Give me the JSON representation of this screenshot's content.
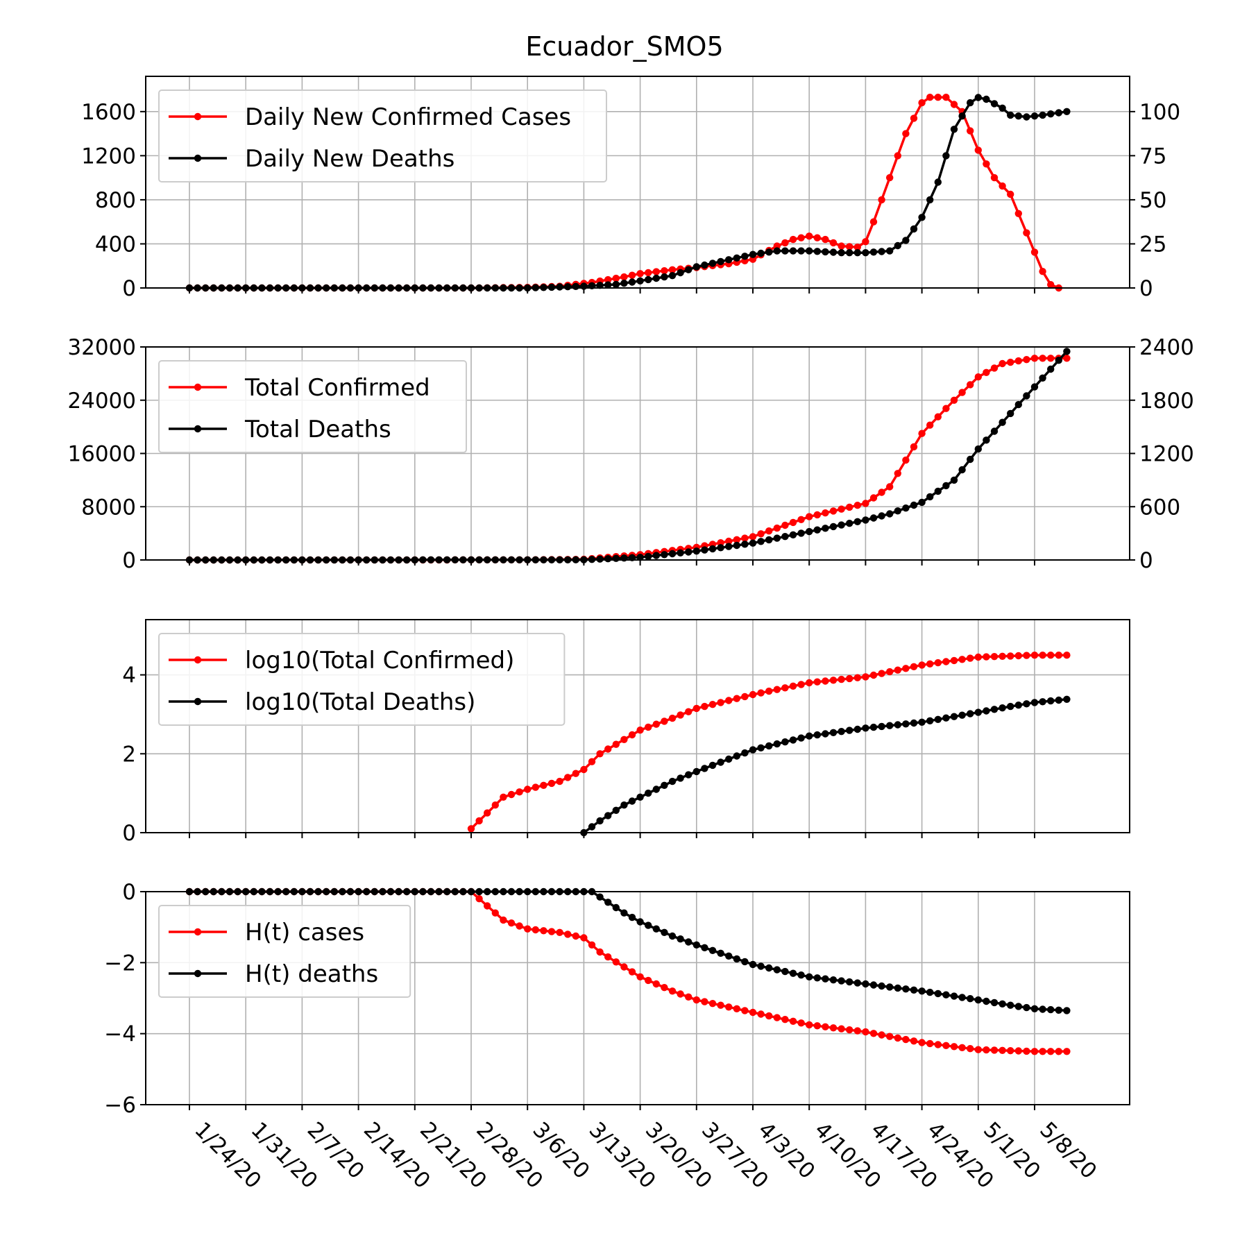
{
  "colors": {
    "cases": "#ff0000",
    "deaths": "#000000",
    "grid": "#b0b0b0"
  },
  "chart_data": [
    {
      "type": "line",
      "title": "Ecuador_SMO5",
      "x": [
        "1/24/20",
        "1/31/20",
        "2/7/20",
        "2/14/20",
        "2/21/20",
        "2/28/20",
        "3/6/20",
        "3/13/20",
        "3/20/20",
        "3/27/20",
        "4/3/20",
        "4/10/20",
        "4/17/20",
        "4/24/20",
        "5/1/20",
        "5/8/20"
      ],
      "x_range": [
        "1/24/20",
        "5/12/20"
      ],
      "ylim": [
        0,
        1920
      ],
      "yticks": [
        "0",
        "400",
        "800",
        "1200",
        "1600"
      ],
      "y2lim": [
        0,
        120
      ],
      "y2ticks": [
        "0",
        "25",
        "50",
        "75",
        "100"
      ],
      "grid": true,
      "legend_position": "upper-left",
      "series": [
        {
          "name": "Daily New Confirmed Cases",
          "axis": "left",
          "color": "#ff0000",
          "points": [
            [
              "1/24/20",
              0
            ],
            [
              "2/28/20",
              0
            ],
            [
              "3/6/20",
              5
            ],
            [
              "3/10/20",
              15
            ],
            [
              "3/14/20",
              50
            ],
            [
              "3/18/20",
              100
            ],
            [
              "3/20/20",
              130
            ],
            [
              "3/24/20",
              165
            ],
            [
              "3/27/20",
              185
            ],
            [
              "3/31/20",
              220
            ],
            [
              "4/3/20",
              260
            ],
            [
              "4/6/20",
              380
            ],
            [
              "4/8/20",
              440
            ],
            [
              "4/10/20",
              470
            ],
            [
              "4/12/20",
              440
            ],
            [
              "4/14/20",
              380
            ],
            [
              "4/16/20",
              370
            ],
            [
              "4/17/20",
              420
            ],
            [
              "4/18/20",
              600
            ],
            [
              "4/20/20",
              1000
            ],
            [
              "4/22/20",
              1400
            ],
            [
              "4/24/20",
              1680
            ],
            [
              "4/25/20",
              1730
            ],
            [
              "4/27/20",
              1730
            ],
            [
              "4/29/20",
              1600
            ],
            [
              "5/1/20",
              1250
            ],
            [
              "5/3/20",
              1000
            ],
            [
              "5/5/20",
              850
            ],
            [
              "5/7/20",
              500
            ],
            [
              "5/9/20",
              150
            ],
            [
              "5/10/20",
              30
            ],
            [
              "5/11/20",
              0
            ]
          ]
        },
        {
          "name": "Daily New Deaths",
          "axis": "right",
          "color": "#000000",
          "points": [
            [
              "1/24/20",
              0
            ],
            [
              "3/6/20",
              0
            ],
            [
              "3/13/20",
              1
            ],
            [
              "3/17/20",
              2
            ],
            [
              "3/20/20",
              4
            ],
            [
              "3/24/20",
              7
            ],
            [
              "3/27/20",
              12
            ],
            [
              "3/31/20",
              16
            ],
            [
              "4/3/20",
              19
            ],
            [
              "4/6/20",
              21
            ],
            [
              "4/10/20",
              21
            ],
            [
              "4/14/20",
              20
            ],
            [
              "4/17/20",
              20
            ],
            [
              "4/20/20",
              21
            ],
            [
              "4/22/20",
              27
            ],
            [
              "4/24/20",
              40
            ],
            [
              "4/26/20",
              60
            ],
            [
              "4/28/20",
              90
            ],
            [
              "4/30/20",
              105
            ],
            [
              "5/1/20",
              108
            ],
            [
              "5/2/20",
              107
            ],
            [
              "5/4/20",
              102
            ],
            [
              "5/5/20",
              98
            ],
            [
              "5/7/20",
              97
            ],
            [
              "5/9/20",
              98
            ],
            [
              "5/12/20",
              100
            ]
          ]
        }
      ]
    },
    {
      "type": "line",
      "x": [
        "1/24/20",
        "1/31/20",
        "2/7/20",
        "2/14/20",
        "2/21/20",
        "2/28/20",
        "3/6/20",
        "3/13/20",
        "3/20/20",
        "3/27/20",
        "4/3/20",
        "4/10/20",
        "4/17/20",
        "4/24/20",
        "5/1/20",
        "5/8/20"
      ],
      "x_range": [
        "1/24/20",
        "5/12/20"
      ],
      "ylim": [
        0,
        32000
      ],
      "yticks": [
        "0",
        "8000",
        "16000",
        "24000",
        "32000"
      ],
      "y2lim": [
        0,
        2400
      ],
      "y2ticks": [
        "0",
        "600",
        "1200",
        "1800",
        "2400"
      ],
      "grid": true,
      "legend_position": "upper-left",
      "series": [
        {
          "name": "Total Confirmed",
          "axis": "left",
          "color": "#ff0000",
          "points": [
            [
              "1/24/20",
              0
            ],
            [
              "3/6/20",
              20
            ],
            [
              "3/13/20",
              100
            ],
            [
              "3/20/20",
              800
            ],
            [
              "3/27/20",
              1900
            ],
            [
              "4/3/20",
              3500
            ],
            [
              "4/10/20",
              6500
            ],
            [
              "4/17/20",
              8500
            ],
            [
              "4/20/20",
              11000
            ],
            [
              "4/24/20",
              19000
            ],
            [
              "4/28/20",
              24000
            ],
            [
              "5/1/20",
              27500
            ],
            [
              "5/4/20",
              29500
            ],
            [
              "5/8/20",
              30300
            ],
            [
              "5/12/20",
              30300
            ]
          ]
        },
        {
          "name": "Total Deaths",
          "axis": "right",
          "color": "#000000",
          "points": [
            [
              "1/24/20",
              0
            ],
            [
              "3/13/20",
              2
            ],
            [
              "3/20/20",
              30
            ],
            [
              "3/27/20",
              100
            ],
            [
              "4/3/20",
              190
            ],
            [
              "4/10/20",
              320
            ],
            [
              "4/17/20",
              450
            ],
            [
              "4/20/20",
              520
            ],
            [
              "4/24/20",
              650
            ],
            [
              "4/28/20",
              900
            ],
            [
              "5/1/20",
              1250
            ],
            [
              "5/5/20",
              1650
            ],
            [
              "5/8/20",
              1950
            ],
            [
              "5/12/20",
              2350
            ]
          ]
        }
      ]
    },
    {
      "type": "line",
      "x": [
        "1/24/20",
        "1/31/20",
        "2/7/20",
        "2/14/20",
        "2/21/20",
        "2/28/20",
        "3/6/20",
        "3/13/20",
        "3/20/20",
        "3/27/20",
        "4/3/20",
        "4/10/20",
        "4/17/20",
        "4/24/20",
        "5/1/20",
        "5/8/20"
      ],
      "x_range": [
        "1/24/20",
        "5/12/20"
      ],
      "ylim": [
        0,
        5.4
      ],
      "yticks": [
        "0",
        "2",
        "4"
      ],
      "grid": true,
      "legend_position": "upper-left",
      "series": [
        {
          "name": "log10(Total Confirmed)",
          "axis": "left",
          "color": "#ff0000",
          "points": [
            [
              "2/28/20",
              0.1
            ],
            [
              "3/1/20",
              0.5
            ],
            [
              "3/3/20",
              0.9
            ],
            [
              "3/6/20",
              1.1
            ],
            [
              "3/10/20",
              1.3
            ],
            [
              "3/13/20",
              1.6
            ],
            [
              "3/15/20",
              2.0
            ],
            [
              "3/20/20",
              2.6
            ],
            [
              "3/24/20",
              2.9
            ],
            [
              "3/27/20",
              3.15
            ],
            [
              "4/3/20",
              3.5
            ],
            [
              "4/10/20",
              3.8
            ],
            [
              "4/17/20",
              3.95
            ],
            [
              "4/24/20",
              4.25
            ],
            [
              "5/1/20",
              4.45
            ],
            [
              "5/8/20",
              4.5
            ],
            [
              "5/12/20",
              4.5
            ]
          ]
        },
        {
          "name": "log10(Total Deaths)",
          "axis": "left",
          "color": "#000000",
          "points": [
            [
              "3/13/20",
              0.0
            ],
            [
              "3/15/20",
              0.3
            ],
            [
              "3/18/20",
              0.7
            ],
            [
              "3/20/20",
              0.9
            ],
            [
              "3/24/20",
              1.3
            ],
            [
              "3/27/20",
              1.55
            ],
            [
              "4/3/20",
              2.1
            ],
            [
              "4/10/20",
              2.45
            ],
            [
              "4/17/20",
              2.65
            ],
            [
              "4/24/20",
              2.8
            ],
            [
              "5/1/20",
              3.05
            ],
            [
              "5/5/20",
              3.2
            ],
            [
              "5/8/20",
              3.3
            ],
            [
              "5/12/20",
              3.38
            ]
          ]
        }
      ]
    },
    {
      "type": "line",
      "x": [
        "1/24/20",
        "1/31/20",
        "2/7/20",
        "2/14/20",
        "2/21/20",
        "2/28/20",
        "3/6/20",
        "3/13/20",
        "3/20/20",
        "3/27/20",
        "4/3/20",
        "4/10/20",
        "4/17/20",
        "4/24/20",
        "5/1/20",
        "5/8/20"
      ],
      "x_range": [
        "1/24/20",
        "5/12/20"
      ],
      "ylim": [
        -6,
        0
      ],
      "yticks": [
        "−6",
        "−4",
        "−2",
        "0"
      ],
      "grid": true,
      "legend_position": "upper-left",
      "series": [
        {
          "name": "H(t) cases",
          "axis": "left",
          "color": "#ff0000",
          "points": [
            [
              "1/24/20",
              0
            ],
            [
              "2/28/20",
              0
            ],
            [
              "3/1/20",
              -0.4
            ],
            [
              "3/3/20",
              -0.8
            ],
            [
              "3/6/20",
              -1.05
            ],
            [
              "3/10/20",
              -1.15
            ],
            [
              "3/13/20",
              -1.3
            ],
            [
              "3/15/20",
              -1.7
            ],
            [
              "3/20/20",
              -2.4
            ],
            [
              "3/24/20",
              -2.8
            ],
            [
              "3/27/20",
              -3.05
            ],
            [
              "4/3/20",
              -3.4
            ],
            [
              "4/10/20",
              -3.75
            ],
            [
              "4/17/20",
              -3.95
            ],
            [
              "4/24/20",
              -4.25
            ],
            [
              "5/1/20",
              -4.45
            ],
            [
              "5/8/20",
              -4.5
            ],
            [
              "5/12/20",
              -4.5
            ]
          ]
        },
        {
          "name": "H(t) deaths",
          "axis": "left",
          "color": "#000000",
          "points": [
            [
              "1/24/20",
              0
            ],
            [
              "3/4/20",
              0
            ],
            [
              "3/14/20",
              0
            ],
            [
              "3/16/20",
              -0.3
            ],
            [
              "3/18/20",
              -0.6
            ],
            [
              "3/20/20",
              -0.85
            ],
            [
              "3/24/20",
              -1.25
            ],
            [
              "3/27/20",
              -1.5
            ],
            [
              "4/3/20",
              -2.05
            ],
            [
              "4/10/20",
              -2.4
            ],
            [
              "4/17/20",
              -2.6
            ],
            [
              "4/24/20",
              -2.8
            ],
            [
              "5/1/20",
              -3.05
            ],
            [
              "5/5/20",
              -3.2
            ],
            [
              "5/8/20",
              -3.3
            ],
            [
              "5/12/20",
              -3.35
            ]
          ]
        }
      ]
    }
  ]
}
